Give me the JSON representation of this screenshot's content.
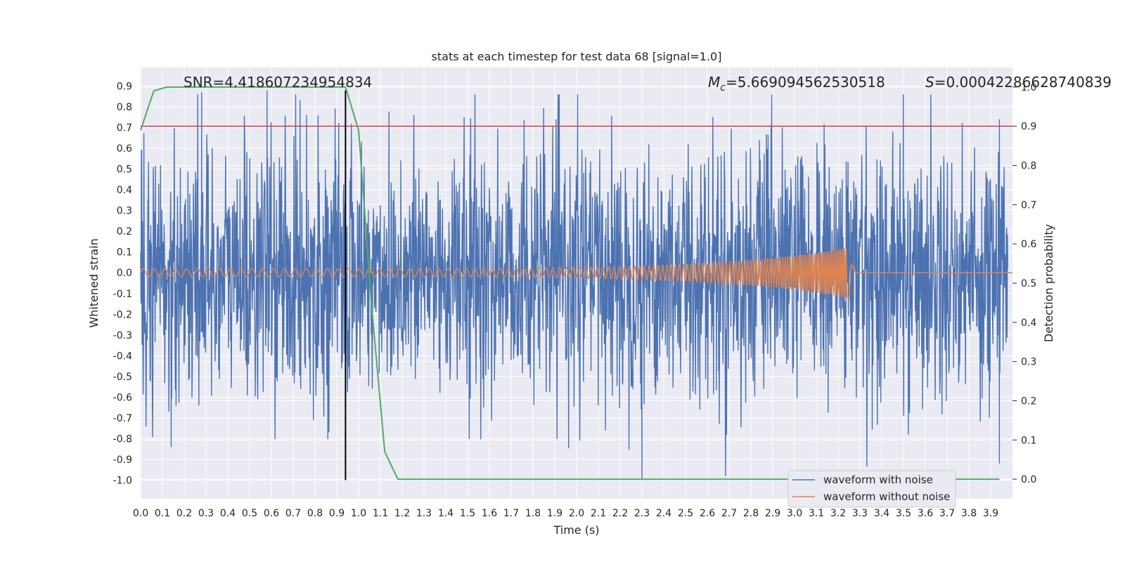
{
  "chart_data": {
    "type": "line",
    "title": "stats at each timestep for test data 68 [signal=1.0]",
    "xlabel": "Time (s)",
    "ylabel": "Whitened strain",
    "y2label": "Detection probability",
    "xlim": [
      0.0,
      4.0
    ],
    "ylim": [
      -1.09,
      0.99
    ],
    "y2lim": [
      -0.05,
      1.05
    ],
    "xticks": [
      "0.0",
      "0.1",
      "0.2",
      "0.3",
      "0.4",
      "0.5",
      "0.6",
      "0.7",
      "0.8",
      "0.9",
      "1.0",
      "1.1",
      "1.2",
      "1.3",
      "1.4",
      "1.5",
      "1.6",
      "1.7",
      "1.8",
      "1.9",
      "2.0",
      "2.1",
      "2.2",
      "2.3",
      "2.4",
      "2.5",
      "2.6",
      "2.7",
      "2.8",
      "2.9",
      "3.0",
      "3.1",
      "3.2",
      "3.3",
      "3.4",
      "3.5",
      "3.6",
      "3.7",
      "3.8",
      "3.9"
    ],
    "yticks": [
      "0.9",
      "0.8",
      "0.7",
      "0.6",
      "0.5",
      "0.4",
      "0.3",
      "0.2",
      "0.1",
      "0.0",
      "-0.1",
      "-0.2",
      "-0.3",
      "-0.4",
      "-0.5",
      "-0.6",
      "-0.7",
      "-0.8",
      "-0.9",
      "-1.0"
    ],
    "y2ticks": [
      "1.0",
      "0.9",
      "0.8",
      "0.7",
      "0.6",
      "0.5",
      "0.4",
      "0.3",
      "0.2",
      "0.1",
      "0.0"
    ],
    "annotations": {
      "snr": "SNR=4.418607234954834",
      "mc": "=5.669094562530518",
      "mc_symbol": "M",
      "mc_sub": "c",
      "s": "=0.00042286628740839",
      "s_symbol": "S"
    },
    "grid": true,
    "legend_position": "lower-right",
    "series": [
      {
        "name": "waveform with noise",
        "color": "#4c72b0",
        "description_type": "noise",
        "amplitude_envelope": 0.55,
        "peak_values": [
          [
            0.28,
            0.87
          ],
          [
            0.58,
            0.88
          ],
          [
            0.14,
            -0.84
          ],
          [
            2.3,
            -1.0
          ],
          [
            3.94,
            -0.92
          ],
          [
            3.94,
            0.74
          ]
        ]
      },
      {
        "name": "waveform without noise",
        "color": "#dd8452",
        "chirp": {
          "t_start": 0.0,
          "t_merge": 3.24,
          "amp_start": 0.02,
          "amp_peak": 0.12,
          "f_start": 20,
          "f_end": 120
        }
      },
      {
        "name": "",
        "axis": "y2",
        "color": "#55a868",
        "x": [
          0.0,
          0.06,
          0.12,
          0.18,
          0.24,
          0.3,
          0.36,
          0.42,
          0.48,
          0.54,
          0.6,
          0.66,
          0.72,
          0.78,
          0.84,
          0.9,
          0.94,
          1.0,
          1.06,
          1.12,
          1.18,
          1.3,
          1.5,
          2.0,
          2.5,
          3.0,
          3.5,
          3.94
        ],
        "y": [
          0.89,
          0.99,
          1.0,
          1.0,
          1.0,
          1.0,
          1.0,
          1.0,
          1.0,
          1.0,
          1.0,
          1.0,
          1.0,
          1.0,
          1.0,
          1.0,
          1.0,
          0.89,
          0.44,
          0.07,
          0.0,
          0.0,
          0.0,
          0.0,
          0.0,
          0.0,
          0.0,
          0.0
        ]
      }
    ],
    "hlines": [
      {
        "axis": "y2",
        "value": 0.9,
        "color": "#c44e52"
      }
    ],
    "vlines": [
      {
        "x": 0.94,
        "y_from": -1.0,
        "y_to": 0.88,
        "color": "#000000"
      }
    ]
  }
}
